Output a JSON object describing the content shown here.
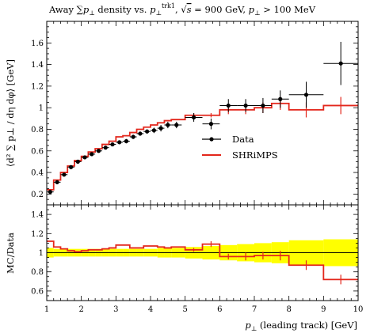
{
  "chart_data": [
    {
      "panel": "main",
      "type": "line",
      "title": "Away ∑ p⊥ density vs. p⊥trk1, √s = 900 GeV, p⊥ > 100 MeV",
      "title_parts": {
        "prefix": "Away ",
        "sum": "∑",
        "p": "p",
        "perp": "⊥",
        "density_vs": " density vs. ",
        "trk": "trk1",
        "comma1": ", ",
        "sqrt": "√",
        "s": "s",
        "energy": " = 900 GeV, ",
        "cut": " > 100 MeV"
      },
      "xlabel": "p⊥ (leading track) [GeV]",
      "xlabel_parts": {
        "p": "p",
        "perp": "⊥",
        "rest": " (leading track) [GeV]"
      },
      "ylabel": "⟨d² ∑ p⊥ / dη dφ⟩ [GeV]",
      "xlim": [
        1,
        10
      ],
      "ylim": [
        0.1,
        1.8
      ],
      "yticks": [
        0.2,
        0.4,
        0.6,
        0.8,
        1,
        1.2,
        1.4,
        1.6
      ],
      "ytick_labels": [
        "0.2",
        "0.4",
        "0.6",
        "0.8",
        "1",
        "1.2",
        "1.4",
        "1.6"
      ],
      "legend_position": "center-right",
      "series": [
        {
          "name": "Data",
          "style": "points-with-errorbars",
          "color": "#000000",
          "points": [
            {
              "x": 1.1,
              "xerr": 0.1,
              "y": 0.22,
              "yerr": 0.01
            },
            {
              "x": 1.3,
              "xerr": 0.1,
              "y": 0.31,
              "yerr": 0.01
            },
            {
              "x": 1.5,
              "xerr": 0.1,
              "y": 0.38,
              "yerr": 0.01
            },
            {
              "x": 1.7,
              "xerr": 0.1,
              "y": 0.45,
              "yerr": 0.01
            },
            {
              "x": 1.9,
              "xerr": 0.1,
              "y": 0.5,
              "yerr": 0.01
            },
            {
              "x": 2.1,
              "xerr": 0.1,
              "y": 0.54,
              "yerr": 0.01
            },
            {
              "x": 2.3,
              "xerr": 0.1,
              "y": 0.57,
              "yerr": 0.01
            },
            {
              "x": 2.5,
              "xerr": 0.1,
              "y": 0.6,
              "yerr": 0.01
            },
            {
              "x": 2.7,
              "xerr": 0.1,
              "y": 0.63,
              "yerr": 0.015
            },
            {
              "x": 2.9,
              "xerr": 0.1,
              "y": 0.66,
              "yerr": 0.015
            },
            {
              "x": 3.1,
              "xerr": 0.1,
              "y": 0.68,
              "yerr": 0.015
            },
            {
              "x": 3.3,
              "xerr": 0.1,
              "y": 0.69,
              "yerr": 0.02
            },
            {
              "x": 3.5,
              "xerr": 0.1,
              "y": 0.73,
              "yerr": 0.02
            },
            {
              "x": 3.7,
              "xerr": 0.1,
              "y": 0.76,
              "yerr": 0.02
            },
            {
              "x": 3.9,
              "xerr": 0.1,
              "y": 0.78,
              "yerr": 0.02
            },
            {
              "x": 4.1,
              "xerr": 0.1,
              "y": 0.79,
              "yerr": 0.025
            },
            {
              "x": 4.3,
              "xerr": 0.1,
              "y": 0.81,
              "yerr": 0.03
            },
            {
              "x": 4.5,
              "xerr": 0.1,
              "y": 0.84,
              "yerr": 0.03
            },
            {
              "x": 4.75,
              "xerr": 0.15,
              "y": 0.84,
              "yerr": 0.03
            },
            {
              "x": 5.25,
              "xerr": 0.25,
              "y": 0.91,
              "yerr": 0.04
            },
            {
              "x": 5.75,
              "xerr": 0.25,
              "y": 0.85,
              "yerr": 0.05
            },
            {
              "x": 6.25,
              "xerr": 0.25,
              "y": 1.02,
              "yerr": 0.06
            },
            {
              "x": 6.75,
              "xerr": 0.25,
              "y": 1.02,
              "yerr": 0.06
            },
            {
              "x": 7.25,
              "xerr": 0.25,
              "y": 1.02,
              "yerr": 0.07
            },
            {
              "x": 7.75,
              "xerr": 0.25,
              "y": 1.08,
              "yerr": 0.08
            },
            {
              "x": 8.5,
              "xerr": 0.5,
              "y": 1.12,
              "yerr": 0.12
            },
            {
              "x": 9.5,
              "xerr": 0.5,
              "y": 1.41,
              "yerr": 0.2
            }
          ]
        },
        {
          "name": "SHRiMPS",
          "style": "step-histogram-with-errorbars",
          "color": "#e3261b",
          "bins": [
            {
              "lo": 1.0,
              "hi": 1.2,
              "y": 0.24,
              "yerr": 0
            },
            {
              "lo": 1.2,
              "hi": 1.4,
              "y": 0.33,
              "yerr": 0
            },
            {
              "lo": 1.4,
              "hi": 1.6,
              "y": 0.4,
              "yerr": 0
            },
            {
              "lo": 1.6,
              "hi": 1.8,
              "y": 0.46,
              "yerr": 0
            },
            {
              "lo": 1.8,
              "hi": 2.0,
              "y": 0.51,
              "yerr": 0
            },
            {
              "lo": 2.0,
              "hi": 2.2,
              "y": 0.55,
              "yerr": 0
            },
            {
              "lo": 2.2,
              "hi": 2.4,
              "y": 0.59,
              "yerr": 0
            },
            {
              "lo": 2.4,
              "hi": 2.6,
              "y": 0.62,
              "yerr": 0
            },
            {
              "lo": 2.6,
              "hi": 2.8,
              "y": 0.66,
              "yerr": 0
            },
            {
              "lo": 2.8,
              "hi": 3.0,
              "y": 0.69,
              "yerr": 0
            },
            {
              "lo": 3.0,
              "hi": 3.2,
              "y": 0.73,
              "yerr": 0
            },
            {
              "lo": 3.2,
              "hi": 3.4,
              "y": 0.74,
              "yerr": 0
            },
            {
              "lo": 3.4,
              "hi": 3.6,
              "y": 0.77,
              "yerr": 0
            },
            {
              "lo": 3.6,
              "hi": 3.8,
              "y": 0.8,
              "yerr": 0
            },
            {
              "lo": 3.8,
              "hi": 4.0,
              "y": 0.82,
              "yerr": 0
            },
            {
              "lo": 4.0,
              "hi": 4.2,
              "y": 0.84,
              "yerr": 0
            },
            {
              "lo": 4.2,
              "hi": 4.4,
              "y": 0.86,
              "yerr": 0
            },
            {
              "lo": 4.4,
              "hi": 4.6,
              "y": 0.88,
              "yerr": 0
            },
            {
              "lo": 4.6,
              "hi": 5.0,
              "y": 0.89,
              "yerr": 0
            },
            {
              "lo": 5.0,
              "hi": 5.5,
              "y": 0.93,
              "yerr": 0.02
            },
            {
              "lo": 5.5,
              "hi": 6.0,
              "y": 0.93,
              "yerr": 0.02
            },
            {
              "lo": 6.0,
              "hi": 6.5,
              "y": 0.98,
              "yerr": 0.04
            },
            {
              "lo": 6.5,
              "hi": 7.0,
              "y": 0.98,
              "yerr": 0.04
            },
            {
              "lo": 7.0,
              "hi": 7.5,
              "y": 1.0,
              "yerr": 0.05
            },
            {
              "lo": 7.5,
              "hi": 8.0,
              "y": 1.04,
              "yerr": 0.06
            },
            {
              "lo": 8.0,
              "hi": 9.0,
              "y": 0.98,
              "yerr": 0.07
            },
            {
              "lo": 9.0,
              "hi": 10.0,
              "y": 1.02,
              "yerr": 0.08
            }
          ]
        }
      ]
    },
    {
      "panel": "ratio",
      "type": "line",
      "ylabel": "MC/Data",
      "xlabel": "p⊥ (leading track) [GeV]",
      "xlim": [
        1,
        10
      ],
      "ylim": [
        0.5,
        1.5
      ],
      "xticks": [
        1,
        2,
        3,
        4,
        5,
        6,
        7,
        8,
        9,
        10
      ],
      "xtick_labels": [
        "1",
        "2",
        "3",
        "4",
        "5",
        "6",
        "7",
        "8",
        "9",
        "10"
      ],
      "yticks": [
        0.6,
        0.8,
        1,
        1.2,
        1.4
      ],
      "ytick_labels": [
        "0.6",
        "0.8",
        "1",
        "1.2",
        "1.4"
      ],
      "reference_line": 1,
      "data_uncertainty_band": {
        "color": "#ffff00",
        "bins": [
          {
            "lo": 1.0,
            "hi": 1.2,
            "half_width": 0.05
          },
          {
            "lo": 1.2,
            "hi": 1.4,
            "half_width": 0.04
          },
          {
            "lo": 1.4,
            "hi": 1.6,
            "half_width": 0.04
          },
          {
            "lo": 1.6,
            "hi": 1.8,
            "half_width": 0.04
          },
          {
            "lo": 1.8,
            "hi": 2.0,
            "half_width": 0.04
          },
          {
            "lo": 2.0,
            "hi": 2.2,
            "half_width": 0.04
          },
          {
            "lo": 2.2,
            "hi": 2.4,
            "half_width": 0.04
          },
          {
            "lo": 2.4,
            "hi": 2.6,
            "half_width": 0.04
          },
          {
            "lo": 2.6,
            "hi": 2.8,
            "half_width": 0.04
          },
          {
            "lo": 2.8,
            "hi": 3.0,
            "half_width": 0.04
          },
          {
            "lo": 3.0,
            "hi": 3.2,
            "half_width": 0.04
          },
          {
            "lo": 3.2,
            "hi": 3.4,
            "half_width": 0.04
          },
          {
            "lo": 3.4,
            "hi": 3.6,
            "half_width": 0.04
          },
          {
            "lo": 3.6,
            "hi": 3.8,
            "half_width": 0.04
          },
          {
            "lo": 3.8,
            "hi": 4.0,
            "half_width": 0.04
          },
          {
            "lo": 4.0,
            "hi": 4.2,
            "half_width": 0.04
          },
          {
            "lo": 4.2,
            "hi": 4.4,
            "half_width": 0.05
          },
          {
            "lo": 4.4,
            "hi": 4.6,
            "half_width": 0.05
          },
          {
            "lo": 4.6,
            "hi": 5.0,
            "half_width": 0.05
          },
          {
            "lo": 5.0,
            "hi": 5.5,
            "half_width": 0.06
          },
          {
            "lo": 5.5,
            "hi": 6.0,
            "half_width": 0.07
          },
          {
            "lo": 6.0,
            "hi": 6.5,
            "half_width": 0.08
          },
          {
            "lo": 6.5,
            "hi": 7.0,
            "half_width": 0.09
          },
          {
            "lo": 7.0,
            "hi": 7.5,
            "half_width": 0.1
          },
          {
            "lo": 7.5,
            "hi": 8.0,
            "half_width": 0.11
          },
          {
            "lo": 8.0,
            "hi": 9.0,
            "half_width": 0.13
          },
          {
            "lo": 9.0,
            "hi": 10.0,
            "half_width": 0.14
          }
        ]
      },
      "series": [
        {
          "name": "SHRiMPS",
          "style": "step-histogram-with-errorbars",
          "color": "#e3261b",
          "bins": [
            {
              "lo": 1.0,
              "hi": 1.2,
              "y": 1.12,
              "yerr": 0
            },
            {
              "lo": 1.2,
              "hi": 1.4,
              "y": 1.06,
              "yerr": 0
            },
            {
              "lo": 1.4,
              "hi": 1.6,
              "y": 1.04,
              "yerr": 0
            },
            {
              "lo": 1.6,
              "hi": 1.8,
              "y": 1.02,
              "yerr": 0
            },
            {
              "lo": 1.8,
              "hi": 2.0,
              "y": 1.01,
              "yerr": 0
            },
            {
              "lo": 2.0,
              "hi": 2.2,
              "y": 1.02,
              "yerr": 0
            },
            {
              "lo": 2.2,
              "hi": 2.4,
              "y": 1.03,
              "yerr": 0
            },
            {
              "lo": 2.4,
              "hi": 2.6,
              "y": 1.03,
              "yerr": 0
            },
            {
              "lo": 2.6,
              "hi": 2.8,
              "y": 1.04,
              "yerr": 0
            },
            {
              "lo": 2.8,
              "hi": 3.0,
              "y": 1.05,
              "yerr": 0
            },
            {
              "lo": 3.0,
              "hi": 3.2,
              "y": 1.08,
              "yerr": 0
            },
            {
              "lo": 3.2,
              "hi": 3.4,
              "y": 1.08,
              "yerr": 0
            },
            {
              "lo": 3.4,
              "hi": 3.6,
              "y": 1.05,
              "yerr": 0
            },
            {
              "lo": 3.6,
              "hi": 3.8,
              "y": 1.05,
              "yerr": 0
            },
            {
              "lo": 3.8,
              "hi": 4.0,
              "y": 1.07,
              "yerr": 0
            },
            {
              "lo": 4.0,
              "hi": 4.2,
              "y": 1.07,
              "yerr": 0
            },
            {
              "lo": 4.2,
              "hi": 4.4,
              "y": 1.06,
              "yerr": 0
            },
            {
              "lo": 4.4,
              "hi": 4.6,
              "y": 1.05,
              "yerr": 0
            },
            {
              "lo": 4.6,
              "hi": 5.0,
              "y": 1.06,
              "yerr": 0
            },
            {
              "lo": 5.0,
              "hi": 5.5,
              "y": 1.03,
              "yerr": 0.02
            },
            {
              "lo": 5.5,
              "hi": 6.0,
              "y": 1.09,
              "yerr": 0.03
            },
            {
              "lo": 6.0,
              "hi": 6.5,
              "y": 0.96,
              "yerr": 0.03
            },
            {
              "lo": 6.5,
              "hi": 7.0,
              "y": 0.96,
              "yerr": 0.04
            },
            {
              "lo": 7.0,
              "hi": 7.5,
              "y": 0.97,
              "yerr": 0.04
            },
            {
              "lo": 7.5,
              "hi": 8.0,
              "y": 0.97,
              "yerr": 0.05
            },
            {
              "lo": 8.0,
              "hi": 9.0,
              "y": 0.87,
              "yerr": 0.05
            },
            {
              "lo": 9.0,
              "hi": 10.0,
              "y": 0.72,
              "yerr": 0.05
            }
          ]
        }
      ]
    }
  ],
  "legend": {
    "entries": [
      {
        "label": "Data",
        "color": "#000000",
        "marker": "dot-with-errorbar"
      },
      {
        "label": "SHRiMPS",
        "color": "#e3261b",
        "marker": "line"
      }
    ]
  }
}
